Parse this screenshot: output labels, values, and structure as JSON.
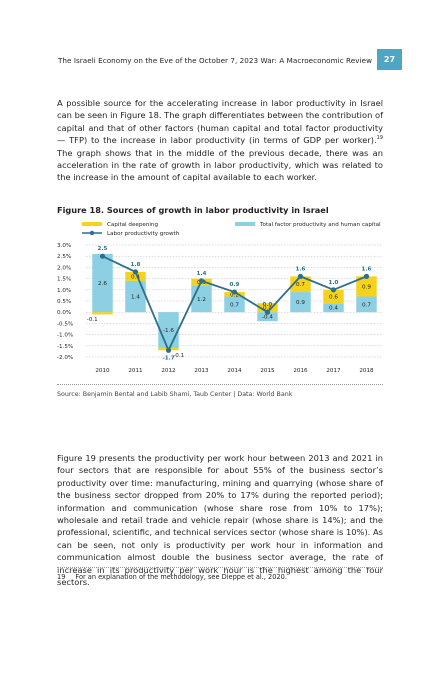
{
  "header": {
    "running_title": "The Israeli Economy on the Eve of the October 7, 2023 War: A Macroeconomic Review",
    "page_number": "27"
  },
  "paragraph1": {
    "text_before_ref": "A possible source for the accelerating increase in labor productivity in Israel can be seen in Figure 18. The graph differentiates between the contribution of capital and that of other factors (human capital and total factor productivity — TFP) to the increase in labor productivity (in terms of GDP per worker).",
    "footnote_ref": "19",
    "text_after_ref": " The graph shows that in the middle of the previous decade, there was an acceleration in the rate of growth in labor productivity, which was related to the increase in the amount of capital available to each worker."
  },
  "figure": {
    "title": "Figure 18. Sources of growth in labor productivity in Israel",
    "source": "Source: Benjamin Bental and Labib Shami, Taub Center | Data: World Bank"
  },
  "chart_data": {
    "type": "bar",
    "stacked": true,
    "categories": [
      "2010",
      "2011",
      "2012",
      "2013",
      "2014",
      "2015",
      "2016",
      "2017",
      "2018"
    ],
    "series": [
      {
        "name": "Capital deepening",
        "kind": "bar",
        "color": "#f5d21c",
        "values": [
          -0.1,
          0.4,
          -0.1,
          0.3,
          0.2,
          0.4,
          0.7,
          0.6,
          0.9
        ]
      },
      {
        "name": "Total factor productivity and human capital",
        "kind": "bar",
        "color": "#8dd0e3",
        "values": [
          2.6,
          1.4,
          -1.6,
          1.2,
          0.7,
          -0.4,
          0.9,
          0.4,
          0.7
        ]
      },
      {
        "name": "Labor productivity growth",
        "kind": "line",
        "color": "#2e6f8e",
        "values": [
          2.5,
          1.8,
          -1.7,
          1.4,
          0.9,
          0.0,
          1.6,
          1.0,
          1.6
        ]
      }
    ],
    "y_ticks": [
      "3.0%",
      "2.5%",
      "2.0%",
      "1.5%",
      "1.0%",
      "0.5%",
      "0.0%",
      "-0.5%",
      "-1.0%",
      "-1.5%",
      "-2.0%"
    ],
    "ylim": [
      -2.0,
      3.0
    ],
    "grid": true,
    "legend_position": "top"
  },
  "paragraph2": {
    "text": "Figure 19 presents the productivity per work hour between 2013 and 2021 in four sectors that are responsible for about 55% of the business sector’s productivity over time: manufacturing, mining and quarrying (whose share of the business sector dropped from 20% to 17% during the reported period); information and communication (whose share rose from 10% to 17%); wholesale and retail trade and vehicle repair (whose share is 14%); and the professional, scientific, and technical services sector (whose share is 10%). As can be seen, not only is productivity per work hour in information and communication almost double the business sector average, the rate of increase in its productivity per work hour is the highest among the four sectors."
  },
  "footnote": {
    "number": "19",
    "text": "For an explanation of the methodology, see Dieppe et al., 2020."
  }
}
